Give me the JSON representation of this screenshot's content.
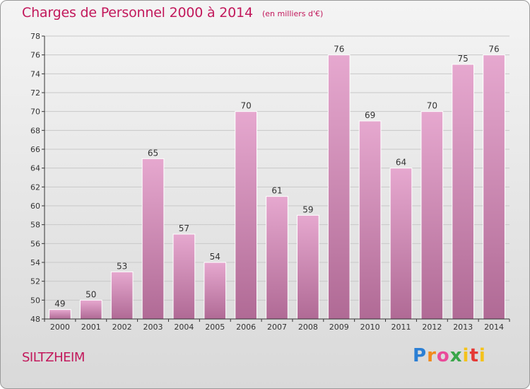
{
  "header": {
    "title": "Charges de Personnel 2000 à 2014",
    "subtitle": "(en milliers d'€)"
  },
  "footer": {
    "commune": "SILTZHEIM",
    "logo_text": "Proxiti"
  },
  "colors": {
    "title": "#c2185b",
    "bar_top": "#e6a8cf",
    "bar_bottom": "#b06a95",
    "axis": "#333333"
  },
  "chart_data": {
    "type": "bar",
    "title": "Charges de Personnel 2000 à 2014",
    "subtitle": "(en milliers d'€)",
    "xlabel": "",
    "ylabel": "",
    "categories": [
      "2000",
      "2001",
      "2002",
      "2003",
      "2004",
      "2005",
      "2006",
      "2007",
      "2008",
      "2009",
      "2010",
      "2011",
      "2012",
      "2013",
      "2014"
    ],
    "values": [
      49,
      50,
      53,
      65,
      57,
      54,
      70,
      61,
      59,
      76,
      69,
      64,
      70,
      75,
      76
    ],
    "ylim": [
      48,
      78
    ],
    "yticks": [
      48,
      50,
      52,
      54,
      56,
      58,
      60,
      62,
      64,
      66,
      68,
      70,
      72,
      74,
      76,
      78
    ],
    "grid": true,
    "legend": "none"
  }
}
